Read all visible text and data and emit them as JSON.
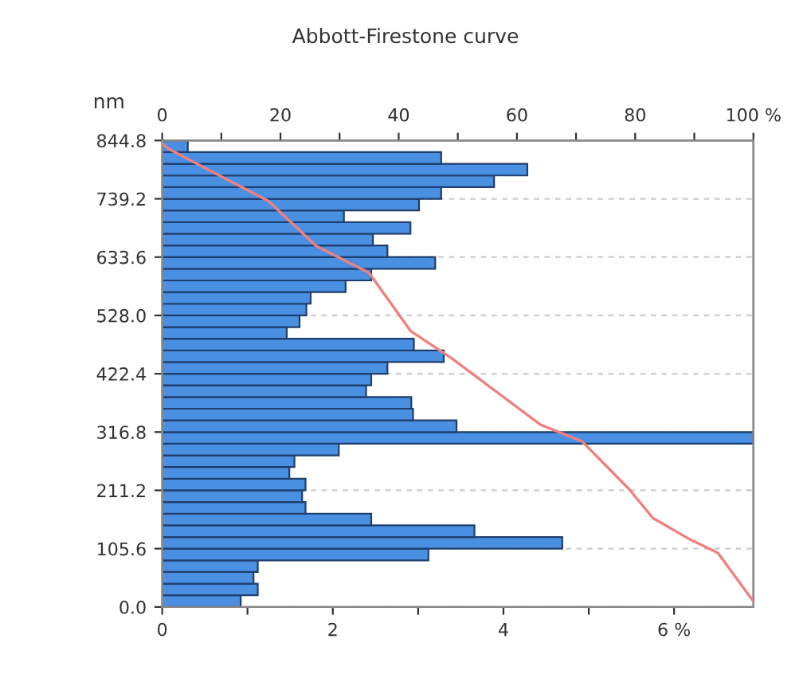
{
  "chart_data": {
    "type": "histogram",
    "title": "Abbott-Firestone curve",
    "ylabel": "nm",
    "orientation": "horizontal",
    "bins": [
      0,
      21.12,
      42.24,
      63.36,
      84.48,
      105.6,
      126.72,
      147.84,
      168.96,
      190.08,
      211.2,
      232.32,
      253.44,
      274.56,
      295.68,
      316.8,
      337.92,
      359.04,
      380.16,
      401.28,
      422.4,
      443.52,
      464.64,
      485.76,
      506.88,
      528.0,
      549.12,
      570.24,
      591.36,
      612.48,
      633.6,
      654.72,
      675.84,
      696.96,
      718.08,
      739.2,
      760.32,
      781.44,
      802.56,
      823.68,
      844.8
    ],
    "series": [
      {
        "color": "#4a90e2",
        "values": [
          0.92,
          1.12,
          1.07,
          1.12,
          3.12,
          4.69,
          3.66,
          2.45,
          1.68,
          1.64,
          1.68,
          1.49,
          1.55,
          2.07,
          6.93,
          3.45,
          2.94,
          2.92,
          2.39,
          2.45,
          2.64,
          3.3,
          2.95,
          1.46,
          1.61,
          1.69,
          1.74,
          2.15,
          2.45,
          3.2,
          2.64,
          2.47,
          2.91,
          2.13,
          3.01,
          3.27,
          3.89,
          4.28,
          3.27,
          0.3
        ]
      },
      {
        "type": "line",
        "axis": "x2",
        "color": "#f08080",
        "x": [
          840,
          830,
          735,
          654,
          605,
          500,
          450,
          330,
          300,
          213,
          161,
          124,
          98,
          10
        ],
        "values": [
          0,
          1,
          18,
          26,
          35,
          42,
          49,
          64,
          71,
          79,
          83,
          89,
          94,
          100
        ]
      }
    ],
    "xlim": [
      0,
      6.93
    ],
    "xticks": [
      0,
      {
        "value": 1,
        "label": null
      },
      2,
      {
        "value": 3,
        "label": null
      },
      4,
      {
        "value": 5,
        "label": null
      },
      {
        "value": 6,
        "label": "6 %"
      }
    ],
    "x2lim": [
      0,
      100
    ],
    "x2ticks": [
      0,
      {
        "value": 10,
        "label": null
      },
      20,
      {
        "value": 30,
        "label": null
      },
      40,
      {
        "value": 50,
        "label": null
      },
      60,
      {
        "value": 70,
        "label": null
      },
      80,
      {
        "value": 90,
        "label": null
      },
      {
        "value": 100,
        "label": "100 %"
      }
    ],
    "ylim": [
      0,
      844.8
    ],
    "yticks": [
      {
        "value": 0,
        "label": "0.0"
      },
      105.6,
      211.2,
      316.8,
      422.4,
      {
        "value": 528,
        "label": "528.0"
      },
      633.6,
      739.2,
      844.8
    ],
    "grid": "y"
  }
}
